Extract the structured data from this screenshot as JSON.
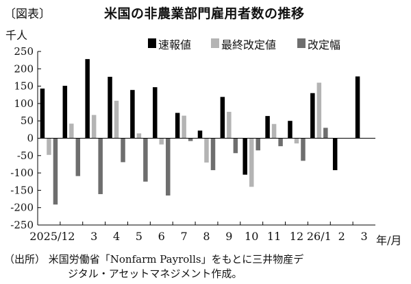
{
  "figure_label": "〔図表〕",
  "title": "米国の非農業部門雇用者数の推移",
  "y_unit": "千人",
  "x_unit": "年/月",
  "source": {
    "line1": "（出所） 米国労働省「Nonfarm Payrolls」をもとに三井物産デ",
    "line2": "ジタル・アセットマネジメント作成。"
  },
  "colors": {
    "preliminary": "#000000",
    "final": "#b4b4b4",
    "revision": "#6e6e6e",
    "axis": "#000000"
  },
  "chart_data": {
    "type": "bar",
    "title": "米国の非農業部門雇用者数の推移",
    "ylabel": "千人",
    "xlabel": "年/月",
    "ylim": [
      -250,
      250
    ],
    "yticks": [
      250,
      200,
      150,
      100,
      50,
      0,
      -50,
      -100,
      -150,
      -200,
      -250
    ],
    "ytick_labels": [
      "250",
      "200",
      "150",
      "100",
      "50",
      "0",
      "-50",
      "-100",
      "-150",
      "-200",
      "-250"
    ],
    "grid": false,
    "legend_position": "top-right",
    "categories": [
      "2025/1",
      "2",
      "3",
      "4",
      "5",
      "6",
      "7",
      "8",
      "9",
      "10",
      "11",
      "12",
      "26/1",
      "2",
      "3"
    ],
    "series": [
      {
        "name": "速報値",
        "color": "#000000",
        "values": [
          143,
          151,
          228,
          177,
          139,
          147,
          73,
          22,
          119,
          -105,
          64,
          50,
          130,
          -92,
          178
        ]
      },
      {
        "name": "最終改定値",
        "color": "#b4b4b4",
        "values": [
          -48,
          42,
          67,
          108,
          14,
          -18,
          65,
          -70,
          76,
          -140,
          41,
          -15,
          160,
          null,
          null
        ]
      },
      {
        "name": "改定幅",
        "color": "#6e6e6e",
        "values": [
          -191,
          -109,
          -161,
          -69,
          -125,
          -165,
          -8,
          -92,
          -43,
          -35,
          -23,
          -65,
          30,
          null,
          null
        ]
      }
    ]
  }
}
